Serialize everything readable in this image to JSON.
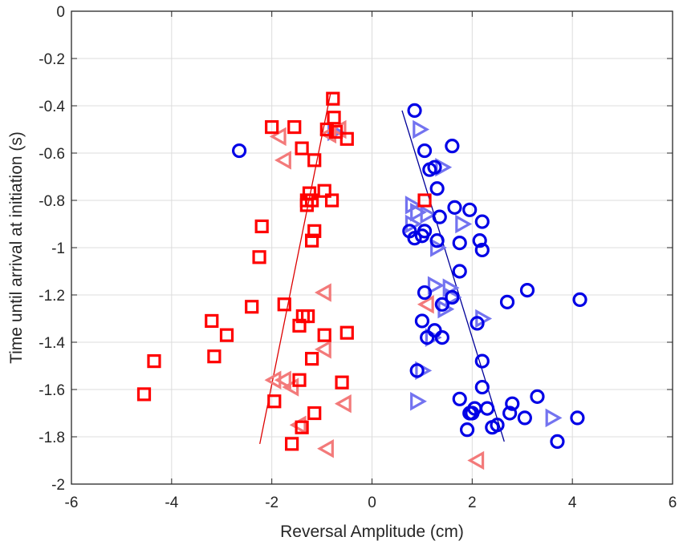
{
  "chart_data": {
    "type": "scatter",
    "title": "",
    "xlabel": "Reversal Amplitude (cm)",
    "ylabel": "Time until arrival at initiation (s)",
    "xlim": [
      -6,
      6
    ],
    "ylim": [
      -2,
      0
    ],
    "xticks": [
      -6,
      -4,
      -2,
      0,
      2,
      4,
      6
    ],
    "xtick_labels": [
      "-6",
      "-4",
      "-2",
      "0",
      "2",
      "4",
      "6"
    ],
    "yticks": [
      0,
      -0.2,
      -0.4,
      -0.6,
      -0.8,
      -1,
      -1.2,
      -1.4,
      -1.6,
      -1.8,
      -2
    ],
    "ytick_labels": [
      "0",
      "-0.2",
      "-0.4",
      "-0.6",
      "-0.8",
      "-1",
      "-1.2",
      "-1.4",
      "-1.6",
      "-1.8",
      "-2"
    ],
    "grid": true,
    "legend": null,
    "series": [
      {
        "name": "red-squares",
        "marker": "square",
        "color": "#ff0000",
        "x": [
          -0.78,
          -0.76,
          -0.72,
          -2.0,
          -1.55,
          -0.5,
          -0.9,
          -1.4,
          -1.15,
          -0.95,
          -0.8,
          -1.3,
          -1.25,
          -1.2,
          -1.3,
          -2.2,
          -1.15,
          -1.2,
          -2.25,
          -2.4,
          -1.75,
          -1.38,
          -1.28,
          -1.45,
          -3.2,
          -2.9,
          -0.95,
          -0.5,
          -3.15,
          -1.2,
          -4.35,
          -0.6,
          -1.45,
          -4.55,
          -1.95,
          -1.15,
          -1.4,
          -1.6,
          1.05
        ],
        "y": [
          -0.37,
          -0.45,
          -0.51,
          -0.49,
          -0.49,
          -0.54,
          -0.5,
          -0.58,
          -0.63,
          -0.76,
          -0.8,
          -0.8,
          -0.77,
          -0.8,
          -0.82,
          -0.91,
          -0.93,
          -0.97,
          -1.04,
          -1.25,
          -1.24,
          -1.29,
          -1.29,
          -1.33,
          -1.31,
          -1.37,
          -1.37,
          -1.36,
          -1.46,
          -1.47,
          -1.48,
          -1.57,
          -1.56,
          -1.62,
          -1.65,
          -1.7,
          -1.76,
          -1.83,
          -0.8
        ]
      },
      {
        "name": "red-triangles-left",
        "marker": "triangle-left",
        "color": "#f37a7a",
        "x": [
          -1.85,
          -1.75,
          -0.85,
          -0.65,
          -0.95,
          -0.95,
          -1.95,
          -1.75,
          -1.6,
          -0.55,
          -1.45,
          -0.9,
          1.1,
          2.1
        ],
        "y": [
          -0.53,
          -0.63,
          -0.52,
          -0.5,
          -1.19,
          -1.43,
          -1.56,
          -1.56,
          -1.59,
          -1.66,
          -1.75,
          -1.85,
          -1.24,
          -1.9
        ]
      },
      {
        "name": "blue-circles",
        "marker": "circle",
        "color": "#0000e6",
        "x": [
          -2.65,
          0.85,
          1.6,
          1.05,
          1.15,
          1.25,
          1.3,
          1.35,
          1.65,
          1.95,
          2.2,
          0.75,
          0.85,
          1.0,
          1.05,
          1.3,
          1.75,
          2.15,
          2.2,
          1.75,
          1.05,
          1.6,
          1.4,
          3.1,
          4.15,
          2.7,
          2.1,
          1.0,
          1.1,
          1.25,
          1.4,
          2.2,
          0.9,
          2.2,
          1.75,
          3.3,
          2.05,
          2.3,
          2.8,
          1.95,
          2.0,
          2.4,
          2.5,
          3.05,
          2.75,
          4.1,
          1.9,
          3.7
        ],
        "y": [
          -0.59,
          -0.42,
          -0.57,
          -0.59,
          -0.67,
          -0.66,
          -0.75,
          -0.87,
          -0.83,
          -0.84,
          -0.89,
          -0.93,
          -0.96,
          -0.95,
          -0.93,
          -0.97,
          -0.98,
          -0.97,
          -1.01,
          -1.1,
          -1.19,
          -1.21,
          -1.24,
          -1.18,
          -1.22,
          -1.23,
          -1.32,
          -1.31,
          -1.38,
          -1.35,
          -1.38,
          -1.48,
          -1.52,
          -1.59,
          -1.64,
          -1.63,
          -1.68,
          -1.68,
          -1.66,
          -1.7,
          -1.7,
          -1.76,
          -1.75,
          -1.72,
          -1.7,
          -1.72,
          -1.77,
          -1.82
        ]
      },
      {
        "name": "blue-triangles-right",
        "marker": "triangle-right",
        "color": "#7373f0",
        "x": [
          -0.75,
          0.95,
          1.4,
          0.8,
          0.9,
          1.1,
          0.8,
          1.8,
          1.3,
          1.25,
          1.55,
          1.6,
          1.45,
          1.2,
          2.2,
          1.0,
          0.9,
          3.6
        ],
        "y": [
          -0.51,
          -0.5,
          -0.66,
          -0.82,
          -0.85,
          -0.86,
          -0.9,
          -0.9,
          -1.0,
          -1.16,
          -1.17,
          -1.21,
          -1.26,
          -1.38,
          -1.3,
          -1.52,
          -1.65,
          -1.72
        ]
      }
    ],
    "fit_lines": [
      {
        "name": "red-fit",
        "color": "#dd0000",
        "x": [
          -2.24,
          -0.83
        ],
        "y": [
          -1.83,
          -0.35
        ]
      },
      {
        "name": "blue-fit",
        "color": "#000099",
        "x": [
          0.6,
          2.64
        ],
        "y": [
          -0.42,
          -1.82
        ]
      }
    ]
  }
}
